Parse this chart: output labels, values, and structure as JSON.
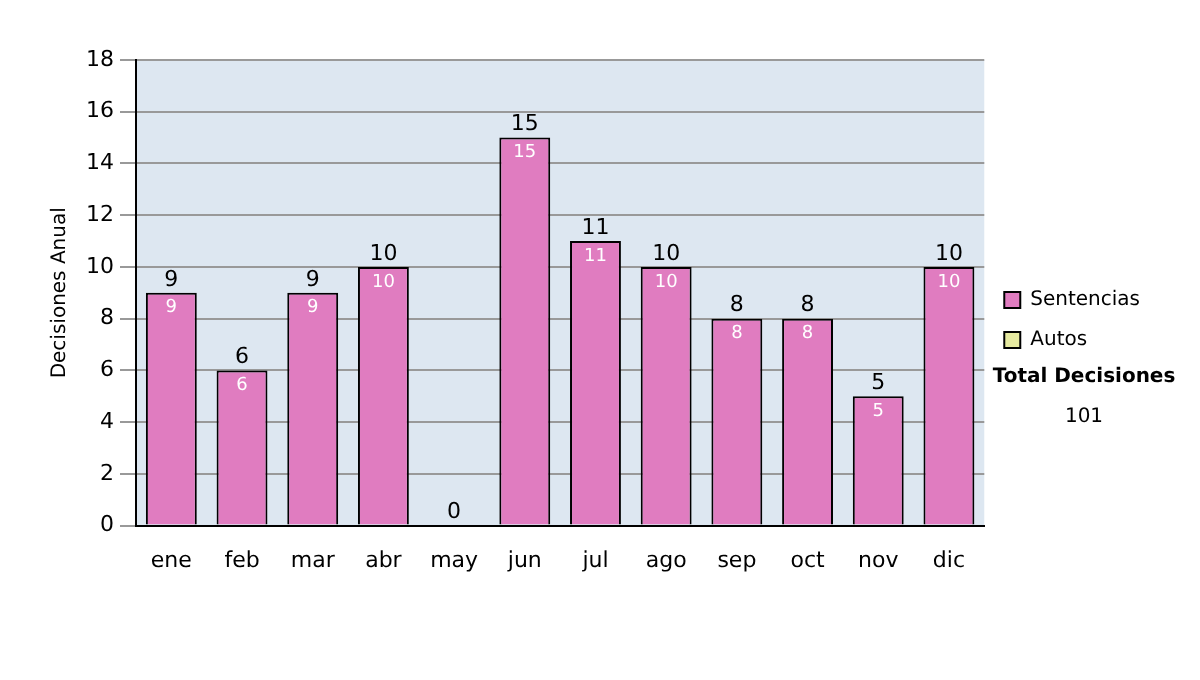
{
  "chart_data": {
    "type": "bar",
    "ylabel": "Decisiones Anual",
    "categories": [
      "ene",
      "feb",
      "mar",
      "abr",
      "may",
      "jun",
      "jul",
      "ago",
      "sep",
      "oct",
      "nov",
      "dic"
    ],
    "stacked": true,
    "series": [
      {
        "name": "Sentencias",
        "color": "#e07cc0",
        "values": [
          9,
          6,
          9,
          10,
          0,
          15,
          11,
          10,
          8,
          8,
          5,
          10
        ],
        "value_labels": [
          "9",
          "6",
          "9",
          "10",
          null,
          "15",
          "11",
          "10",
          "8",
          "8",
          "5",
          "10"
        ]
      },
      {
        "name": "Autos",
        "color": "#e6eaa0",
        "values": [
          0,
          0,
          0,
          0,
          0,
          0,
          0,
          0,
          0,
          0,
          0,
          0
        ]
      }
    ],
    "totals": [
      "9",
      "6",
      "9",
      "10",
      "0",
      "15",
      "11",
      "10",
      "8",
      "8",
      "5",
      "10"
    ],
    "ylim": [
      0,
      18
    ],
    "yticks": [
      0,
      2,
      4,
      6,
      8,
      10,
      12,
      14,
      16,
      18
    ],
    "grid": "y",
    "legend": "right",
    "annotations": [
      "Total Decisiones",
      "101"
    ]
  }
}
